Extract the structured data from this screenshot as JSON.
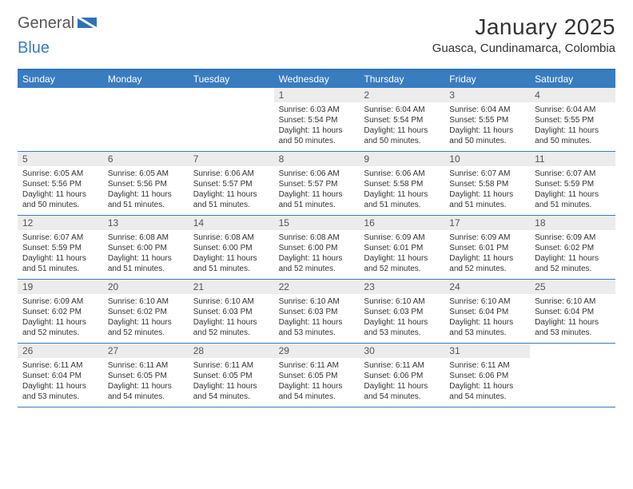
{
  "logo": {
    "general": "General",
    "blue": "Blue"
  },
  "title": "January 2025",
  "location": "Guasca, Cundinamarca, Colombia",
  "colors": {
    "header_bg": "#3a7cc0",
    "header_text": "#ffffff",
    "daynum_bg": "#ececec",
    "daynum_text": "#555555",
    "border": "#3a7cc0",
    "text": "#333333",
    "logo_gray": "#565656",
    "logo_blue": "#3a7cc0"
  },
  "weekdays": [
    "Sunday",
    "Monday",
    "Tuesday",
    "Wednesday",
    "Thursday",
    "Friday",
    "Saturday"
  ],
  "weeks": [
    [
      {
        "day": "",
        "sunrise": "",
        "sunset": "",
        "daylight": ""
      },
      {
        "day": "",
        "sunrise": "",
        "sunset": "",
        "daylight": ""
      },
      {
        "day": "",
        "sunrise": "",
        "sunset": "",
        "daylight": ""
      },
      {
        "day": "1",
        "sunrise": "Sunrise: 6:03 AM",
        "sunset": "Sunset: 5:54 PM",
        "daylight": "Daylight: 11 hours and 50 minutes."
      },
      {
        "day": "2",
        "sunrise": "Sunrise: 6:04 AM",
        "sunset": "Sunset: 5:54 PM",
        "daylight": "Daylight: 11 hours and 50 minutes."
      },
      {
        "day": "3",
        "sunrise": "Sunrise: 6:04 AM",
        "sunset": "Sunset: 5:55 PM",
        "daylight": "Daylight: 11 hours and 50 minutes."
      },
      {
        "day": "4",
        "sunrise": "Sunrise: 6:04 AM",
        "sunset": "Sunset: 5:55 PM",
        "daylight": "Daylight: 11 hours and 50 minutes."
      }
    ],
    [
      {
        "day": "5",
        "sunrise": "Sunrise: 6:05 AM",
        "sunset": "Sunset: 5:56 PM",
        "daylight": "Daylight: 11 hours and 50 minutes."
      },
      {
        "day": "6",
        "sunrise": "Sunrise: 6:05 AM",
        "sunset": "Sunset: 5:56 PM",
        "daylight": "Daylight: 11 hours and 51 minutes."
      },
      {
        "day": "7",
        "sunrise": "Sunrise: 6:06 AM",
        "sunset": "Sunset: 5:57 PM",
        "daylight": "Daylight: 11 hours and 51 minutes."
      },
      {
        "day": "8",
        "sunrise": "Sunrise: 6:06 AM",
        "sunset": "Sunset: 5:57 PM",
        "daylight": "Daylight: 11 hours and 51 minutes."
      },
      {
        "day": "9",
        "sunrise": "Sunrise: 6:06 AM",
        "sunset": "Sunset: 5:58 PM",
        "daylight": "Daylight: 11 hours and 51 minutes."
      },
      {
        "day": "10",
        "sunrise": "Sunrise: 6:07 AM",
        "sunset": "Sunset: 5:58 PM",
        "daylight": "Daylight: 11 hours and 51 minutes."
      },
      {
        "day": "11",
        "sunrise": "Sunrise: 6:07 AM",
        "sunset": "Sunset: 5:59 PM",
        "daylight": "Daylight: 11 hours and 51 minutes."
      }
    ],
    [
      {
        "day": "12",
        "sunrise": "Sunrise: 6:07 AM",
        "sunset": "Sunset: 5:59 PM",
        "daylight": "Daylight: 11 hours and 51 minutes."
      },
      {
        "day": "13",
        "sunrise": "Sunrise: 6:08 AM",
        "sunset": "Sunset: 6:00 PM",
        "daylight": "Daylight: 11 hours and 51 minutes."
      },
      {
        "day": "14",
        "sunrise": "Sunrise: 6:08 AM",
        "sunset": "Sunset: 6:00 PM",
        "daylight": "Daylight: 11 hours and 51 minutes."
      },
      {
        "day": "15",
        "sunrise": "Sunrise: 6:08 AM",
        "sunset": "Sunset: 6:00 PM",
        "daylight": "Daylight: 11 hours and 52 minutes."
      },
      {
        "day": "16",
        "sunrise": "Sunrise: 6:09 AM",
        "sunset": "Sunset: 6:01 PM",
        "daylight": "Daylight: 11 hours and 52 minutes."
      },
      {
        "day": "17",
        "sunrise": "Sunrise: 6:09 AM",
        "sunset": "Sunset: 6:01 PM",
        "daylight": "Daylight: 11 hours and 52 minutes."
      },
      {
        "day": "18",
        "sunrise": "Sunrise: 6:09 AM",
        "sunset": "Sunset: 6:02 PM",
        "daylight": "Daylight: 11 hours and 52 minutes."
      }
    ],
    [
      {
        "day": "19",
        "sunrise": "Sunrise: 6:09 AM",
        "sunset": "Sunset: 6:02 PM",
        "daylight": "Daylight: 11 hours and 52 minutes."
      },
      {
        "day": "20",
        "sunrise": "Sunrise: 6:10 AM",
        "sunset": "Sunset: 6:02 PM",
        "daylight": "Daylight: 11 hours and 52 minutes."
      },
      {
        "day": "21",
        "sunrise": "Sunrise: 6:10 AM",
        "sunset": "Sunset: 6:03 PM",
        "daylight": "Daylight: 11 hours and 52 minutes."
      },
      {
        "day": "22",
        "sunrise": "Sunrise: 6:10 AM",
        "sunset": "Sunset: 6:03 PM",
        "daylight": "Daylight: 11 hours and 53 minutes."
      },
      {
        "day": "23",
        "sunrise": "Sunrise: 6:10 AM",
        "sunset": "Sunset: 6:03 PM",
        "daylight": "Daylight: 11 hours and 53 minutes."
      },
      {
        "day": "24",
        "sunrise": "Sunrise: 6:10 AM",
        "sunset": "Sunset: 6:04 PM",
        "daylight": "Daylight: 11 hours and 53 minutes."
      },
      {
        "day": "25",
        "sunrise": "Sunrise: 6:10 AM",
        "sunset": "Sunset: 6:04 PM",
        "daylight": "Daylight: 11 hours and 53 minutes."
      }
    ],
    [
      {
        "day": "26",
        "sunrise": "Sunrise: 6:11 AM",
        "sunset": "Sunset: 6:04 PM",
        "daylight": "Daylight: 11 hours and 53 minutes."
      },
      {
        "day": "27",
        "sunrise": "Sunrise: 6:11 AM",
        "sunset": "Sunset: 6:05 PM",
        "daylight": "Daylight: 11 hours and 54 minutes."
      },
      {
        "day": "28",
        "sunrise": "Sunrise: 6:11 AM",
        "sunset": "Sunset: 6:05 PM",
        "daylight": "Daylight: 11 hours and 54 minutes."
      },
      {
        "day": "29",
        "sunrise": "Sunrise: 6:11 AM",
        "sunset": "Sunset: 6:05 PM",
        "daylight": "Daylight: 11 hours and 54 minutes."
      },
      {
        "day": "30",
        "sunrise": "Sunrise: 6:11 AM",
        "sunset": "Sunset: 6:06 PM",
        "daylight": "Daylight: 11 hours and 54 minutes."
      },
      {
        "day": "31",
        "sunrise": "Sunrise: 6:11 AM",
        "sunset": "Sunset: 6:06 PM",
        "daylight": "Daylight: 11 hours and 54 minutes."
      },
      {
        "day": "",
        "sunrise": "",
        "sunset": "",
        "daylight": ""
      }
    ]
  ]
}
